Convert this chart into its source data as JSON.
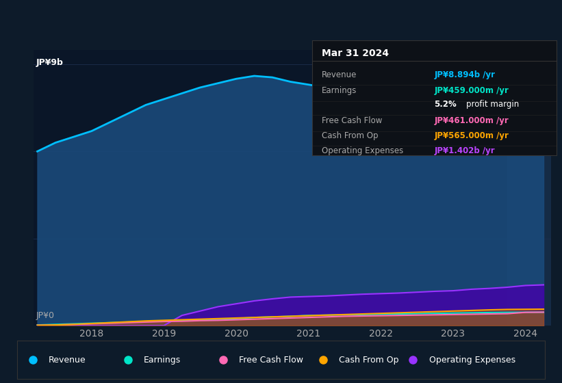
{
  "bg_color": "#0d1b2a",
  "plot_bg_color": "#0a1628",
  "grid_color": "#1e3050",
  "years": [
    2017.25,
    2017.5,
    2017.75,
    2018.0,
    2018.25,
    2018.5,
    2018.75,
    2019.0,
    2019.25,
    2019.5,
    2019.75,
    2020.0,
    2020.25,
    2020.5,
    2020.75,
    2021.0,
    2021.25,
    2021.5,
    2021.75,
    2022.0,
    2022.25,
    2022.5,
    2022.75,
    2023.0,
    2023.25,
    2023.5,
    2023.75,
    2024.0,
    2024.25
  ],
  "revenue": [
    6.0,
    6.3,
    6.5,
    6.7,
    7.0,
    7.3,
    7.6,
    7.8,
    8.0,
    8.2,
    8.35,
    8.5,
    8.6,
    8.55,
    8.4,
    8.3,
    8.2,
    8.15,
    8.05,
    8.0,
    8.1,
    8.2,
    8.35,
    8.5,
    8.55,
    8.6,
    8.7,
    8.85,
    8.894
  ],
  "operating_expenses": [
    0.0,
    0.0,
    0.0,
    0.0,
    0.0,
    0.0,
    0.0,
    0.0,
    0.35,
    0.5,
    0.65,
    0.75,
    0.85,
    0.92,
    0.98,
    1.0,
    1.02,
    1.05,
    1.08,
    1.1,
    1.12,
    1.15,
    1.18,
    1.2,
    1.25,
    1.28,
    1.32,
    1.38,
    1.402
  ],
  "earnings": [
    0.02,
    0.04,
    0.06,
    0.08,
    0.1,
    0.12,
    0.14,
    0.16,
    0.18,
    0.2,
    0.22,
    0.24,
    0.28,
    0.3,
    0.32,
    0.35,
    0.36,
    0.37,
    0.38,
    0.39,
    0.4,
    0.41,
    0.42,
    0.43,
    0.44,
    0.45,
    0.455,
    0.458,
    0.459
  ],
  "free_cash_flow": [
    0.01,
    0.02,
    0.04,
    0.06,
    0.08,
    0.1,
    0.12,
    0.14,
    0.15,
    0.17,
    0.18,
    0.2,
    0.22,
    0.24,
    0.26,
    0.28,
    0.3,
    0.32,
    0.33,
    0.34,
    0.35,
    0.36,
    0.37,
    0.38,
    0.39,
    0.4,
    0.41,
    0.455,
    0.461
  ],
  "cash_from_op": [
    0.01,
    0.02,
    0.04,
    0.07,
    0.1,
    0.13,
    0.16,
    0.18,
    0.2,
    0.22,
    0.24,
    0.26,
    0.28,
    0.3,
    0.32,
    0.34,
    0.36,
    0.38,
    0.4,
    0.42,
    0.44,
    0.46,
    0.48,
    0.5,
    0.52,
    0.54,
    0.555,
    0.56,
    0.565
  ],
  "revenue_color": "#00bfff",
  "earnings_color": "#00e5c8",
  "free_cash_flow_color": "#ff69b4",
  "cash_from_op_color": "#ffa500",
  "operating_expenses_color": "#9933ff",
  "xlim": [
    2017.2,
    2024.35
  ],
  "ylim": [
    0,
    9.5
  ],
  "ytick_label_top": "JP¥9b",
  "ytick_label_bottom": "JP¥0",
  "xtick_labels": [
    "2018",
    "2019",
    "2020",
    "2021",
    "2022",
    "2023",
    "2024"
  ],
  "xtick_values": [
    2018,
    2019,
    2020,
    2021,
    2022,
    2023,
    2024
  ],
  "tooltip_title": "Mar 31 2024",
  "tooltip_rows": [
    {
      "label": "Revenue",
      "value": "JP¥8.894b /yr",
      "value_color": "#00bfff"
    },
    {
      "label": "Earnings",
      "value": "JP¥459.000m /yr",
      "value_color": "#00e5c8"
    },
    {
      "label": "",
      "value": "5.2% profit margin",
      "value_color": "#ffffff",
      "bold_part": "5.2%"
    },
    {
      "label": "Free Cash Flow",
      "value": "JP¥461.000m /yr",
      "value_color": "#ff69b4"
    },
    {
      "label": "Cash From Op",
      "value": "JP¥565.000m /yr",
      "value_color": "#ffa500"
    },
    {
      "label": "Operating Expenses",
      "value": "JP¥1.402b /yr",
      "value_color": "#bb44ff"
    }
  ],
  "legend_items": [
    {
      "label": "Revenue",
      "color": "#00bfff"
    },
    {
      "label": "Earnings",
      "color": "#00e5c8"
    },
    {
      "label": "Free Cash Flow",
      "color": "#ff69b4"
    },
    {
      "label": "Cash From Op",
      "color": "#ffa500"
    },
    {
      "label": "Operating Expenses",
      "color": "#9933ff"
    }
  ],
  "highlight_start": 2023.75
}
